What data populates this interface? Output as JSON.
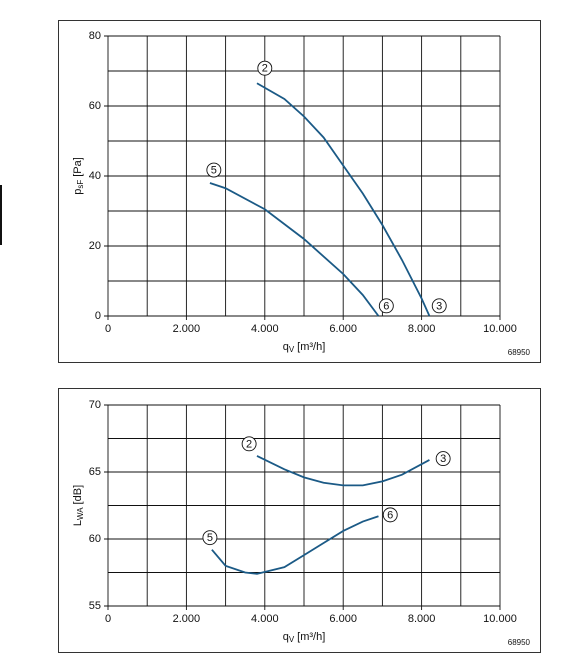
{
  "chart_data": [
    {
      "type": "line",
      "ylabel": "p",
      "ylabel_sub": "sF",
      "ylabel_unit": "[Pa]",
      "xlabel": "q",
      "xlabel_sub": "V",
      "xlabel_unit": "[m³/h]",
      "code": "68950",
      "xlim": [
        0,
        10000
      ],
      "ylim": [
        0,
        80
      ],
      "xticks": [
        0,
        {
          "value": 2000,
          "label": "2.000"
        },
        {
          "value": 4000,
          "label": "4.000"
        },
        {
          "value": 6000,
          "label": "6.000"
        },
        {
          "value": 8000,
          "label": "8.000"
        },
        {
          "value": 10000,
          "label": "10.000"
        }
      ],
      "xgrid_minor": [
        1000,
        3000,
        5000,
        7000,
        9000
      ],
      "yticks": [
        0,
        20,
        40,
        60,
        80
      ],
      "ygrid_minor": [
        10,
        30,
        50,
        70
      ],
      "series": [
        {
          "color": "#1b5a86",
          "x": [
            3800,
            4500,
            5000,
            5500,
            6000,
            6500,
            7000,
            7500,
            8000,
            8200
          ],
          "values": [
            66.5,
            62,
            57,
            51,
            43,
            35,
            26,
            16,
            5,
            0
          ]
        },
        {
          "color": "#1b5a86",
          "x": [
            2600,
            3000,
            4000,
            5000,
            6000,
            6500,
            6900
          ],
          "values": [
            38,
            36.5,
            30.5,
            22,
            12,
            6,
            0
          ]
        }
      ],
      "annotations": [
        {
          "text": "2",
          "x": 4000,
          "y": 70.8
        },
        {
          "text": "5",
          "x": 2700,
          "y": 41.7
        },
        {
          "text": "6",
          "x": 7100,
          "y": 2.9
        },
        {
          "text": "3",
          "x": 8450,
          "y": 2.9
        }
      ]
    },
    {
      "type": "line",
      "ylabel": "L",
      "ylabel_sub": "WA",
      "ylabel_unit": "[dB]",
      "xlabel": "q",
      "xlabel_sub": "V",
      "xlabel_unit": "[m³/h]",
      "code": "68950",
      "xlim": [
        0,
        10000
      ],
      "ylim": [
        55,
        70
      ],
      "xticks": [
        0,
        {
          "value": 2000,
          "label": "2.000"
        },
        {
          "value": 4000,
          "label": "4.000"
        },
        {
          "value": 6000,
          "label": "6.000"
        },
        {
          "value": 8000,
          "label": "8.000"
        },
        {
          "value": 10000,
          "label": "10.000"
        }
      ],
      "xgrid_minor": [
        1000,
        3000,
        5000,
        7000,
        9000
      ],
      "yticks": [
        55,
        60,
        65,
        70
      ],
      "ygrid_minor": [
        57.5,
        62.5,
        67.5
      ],
      "series": [
        {
          "color": "#1b5a86",
          "x": [
            3800,
            4500,
            5000,
            5500,
            6000,
            6500,
            7000,
            7500,
            8200
          ],
          "values": [
            66.2,
            65.2,
            64.6,
            64.2,
            64.0,
            64.0,
            64.3,
            64.8,
            65.9
          ]
        },
        {
          "color": "#1b5a86",
          "x": [
            2650,
            3000,
            3500,
            3800,
            4500,
            5000,
            5500,
            6000,
            6500,
            6900
          ],
          "values": [
            59.2,
            58.0,
            57.5,
            57.4,
            57.9,
            58.8,
            59.7,
            60.6,
            61.3,
            61.7
          ]
        }
      ],
      "annotations": [
        {
          "text": "2",
          "x": 3600,
          "y": 67.1
        },
        {
          "text": "3",
          "x": 8550,
          "y": 66.0
        },
        {
          "text": "5",
          "x": 2600,
          "y": 60.1
        },
        {
          "text": "6",
          "x": 7200,
          "y": 61.8
        }
      ]
    }
  ]
}
